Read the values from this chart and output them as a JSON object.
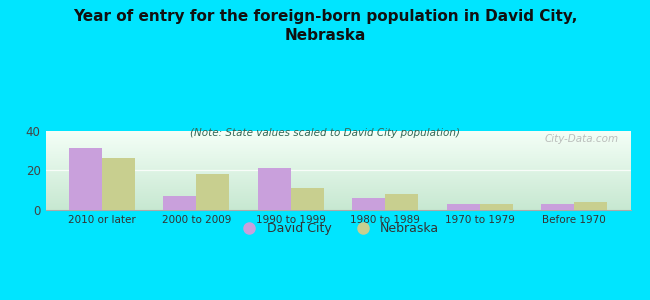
{
  "title": "Year of entry for the foreign-born population in David City,\nNebraska",
  "subtitle": "(Note: State values scaled to David City population)",
  "categories": [
    "2010 or later",
    "2000 to 2009",
    "1990 to 1999",
    "1980 to 1989",
    "1970 to 1979",
    "Before 1970"
  ],
  "david_city": [
    31,
    7,
    21,
    6,
    3,
    3
  ],
  "nebraska": [
    26,
    18,
    11,
    8,
    3,
    4
  ],
  "david_city_color": "#c9a0dc",
  "nebraska_color": "#c8cf8f",
  "background_color": "#00e5ff",
  "ylim": [
    0,
    40
  ],
  "yticks": [
    0,
    20,
    40
  ],
  "watermark": "City-Data.com",
  "legend_david_city": "David City",
  "legend_nebraska": "Nebraska",
  "bar_width": 0.35
}
